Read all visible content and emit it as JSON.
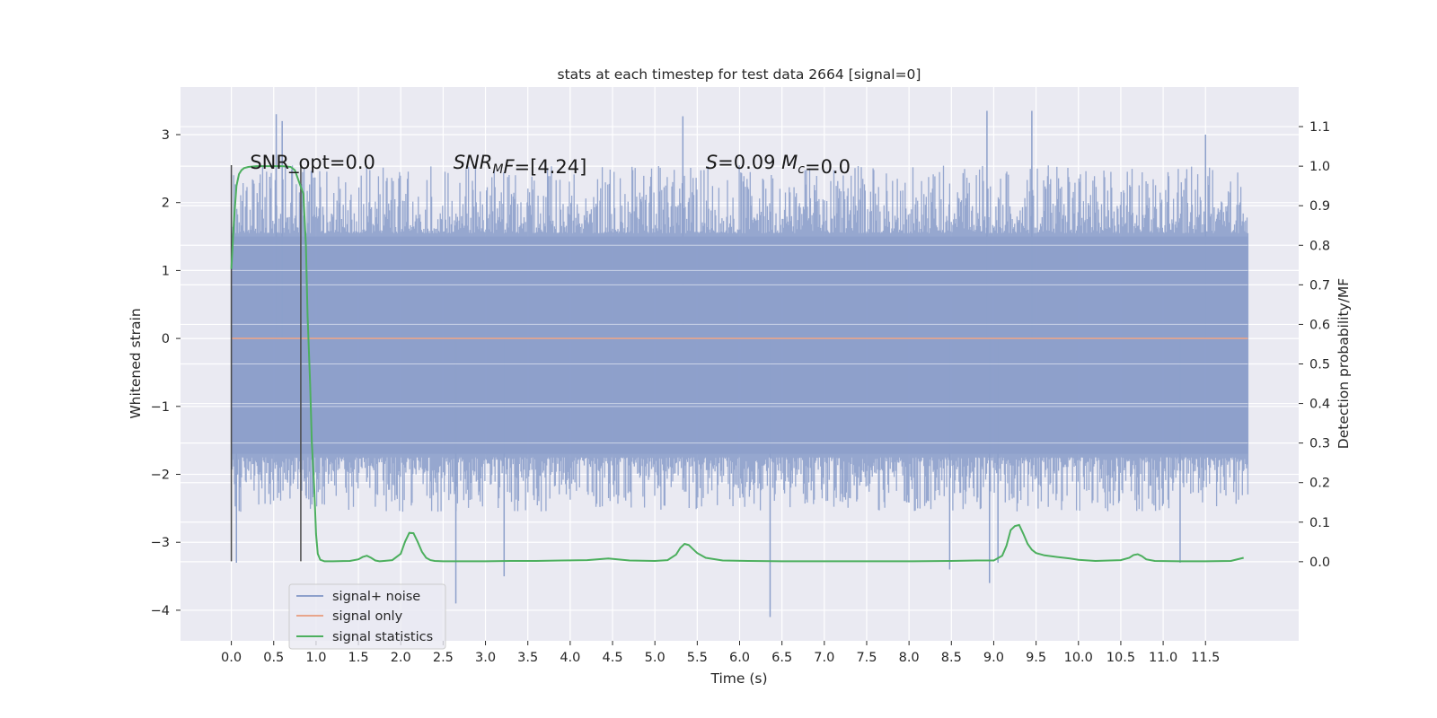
{
  "chart_data": {
    "type": "line",
    "title": "stats at each timestep for test data 2664 [signal=0]",
    "xlabel": "Time (s)",
    "ylabel": "Whitened strain",
    "y2label": "Detection probability/MF",
    "xlim": [
      -0.6,
      12.6
    ],
    "ylim": [
      -4.45,
      3.7
    ],
    "y2lim": [
      -0.2,
      1.2
    ],
    "x_ticks": [
      0.0,
      0.5,
      1.0,
      1.5,
      2.0,
      2.5,
      3.0,
      3.5,
      4.0,
      4.5,
      5.0,
      5.5,
      6.0,
      6.5,
      7.0,
      7.5,
      8.0,
      8.5,
      9.0,
      9.5,
      10.0,
      10.5,
      11.0,
      11.5
    ],
    "x_tick_labels": [
      "0.0",
      "0.5",
      "1.0",
      "1.5",
      "2.0",
      "2.5",
      "3.0",
      "3.5",
      "4.0",
      "4.5",
      "5.0",
      "5.5",
      "6.0",
      "6.5",
      "7.0",
      "7.5",
      "8.0",
      "8.5",
      "9.0",
      "9.5",
      "10.0",
      "10.5",
      "11.0",
      "11.5"
    ],
    "y_ticks": [
      3,
      2,
      1,
      0,
      -1,
      -2,
      -3,
      -4
    ],
    "y_tick_labels": [
      "3",
      "2",
      "1",
      "0",
      "−1",
      "−2",
      "−3",
      "−4"
    ],
    "y2_ticks": [
      1.1,
      1.0,
      0.9,
      0.8,
      0.7,
      0.6,
      0.5,
      0.4,
      0.3,
      0.2,
      0.1,
      0.0
    ],
    "y2_tick_labels": [
      "1.1",
      "1.0",
      "0.9",
      "0.8",
      "0.7",
      "0.6",
      "0.5",
      "0.4",
      "0.3",
      "0.2",
      "0.1",
      "0.0"
    ],
    "grid": true,
    "legend_position": "lower-left",
    "noise": {
      "x_range": [
        0.0,
        12.0
      ],
      "core_range": [
        -1.7,
        1.5
      ],
      "typical_peak_range": [
        -2.5,
        2.5
      ],
      "extreme_points": [
        {
          "x": 0.06,
          "y": -3.3
        },
        {
          "x": 0.53,
          "y": 3.3
        },
        {
          "x": 0.6,
          "y": 3.2
        },
        {
          "x": 2.65,
          "y": -3.9
        },
        {
          "x": 3.22,
          "y": -3.5
        },
        {
          "x": 5.33,
          "y": 3.27
        },
        {
          "x": 6.36,
          "y": -4.1
        },
        {
          "x": 8.48,
          "y": -3.4
        },
        {
          "x": 8.92,
          "y": 3.35
        },
        {
          "x": 8.95,
          "y": -3.6
        },
        {
          "x": 9.45,
          "y": 3.35
        },
        {
          "x": 9.05,
          "y": -3.3
        },
        {
          "x": 11.2,
          "y": -3.3
        },
        {
          "x": 11.5,
          "y": 3.0
        }
      ]
    },
    "signal_only": {
      "y": 0.0
    },
    "vertical_markers": [
      {
        "x": 0.0,
        "y_range": [
          -3.28,
          2.55
        ]
      },
      {
        "x": 0.82,
        "y_range": [
          -3.28,
          2.55
        ]
      }
    ],
    "series": [
      {
        "name": "signal+ noise",
        "color": "#8da0cb",
        "kind": "noise"
      },
      {
        "name": "signal only",
        "color": "#e8a58b",
        "kind": "flat"
      },
      {
        "name": "signal statistics",
        "color": "#4caf5e",
        "axis": "right",
        "x": [
          0.0,
          0.03,
          0.06,
          0.09,
          0.12,
          0.15,
          0.2,
          0.3,
          0.4,
          0.5,
          0.6,
          0.7,
          0.75,
          0.8,
          0.85,
          0.88,
          0.9,
          0.93,
          0.95,
          0.98,
          1.0,
          1.02,
          1.05,
          1.1,
          1.2,
          1.4,
          1.5,
          1.55,
          1.6,
          1.65,
          1.7,
          1.75,
          1.8,
          1.9,
          2.0,
          2.05,
          2.1,
          2.15,
          2.2,
          2.25,
          2.3,
          2.35,
          2.4,
          2.5,
          2.7,
          3.0,
          3.3,
          3.6,
          3.9,
          4.2,
          4.45,
          4.7,
          5.0,
          5.15,
          5.25,
          5.3,
          5.35,
          5.4,
          5.45,
          5.5,
          5.6,
          5.8,
          6.1,
          6.5,
          7.0,
          7.5,
          8.0,
          8.5,
          8.8,
          9.0,
          9.1,
          9.15,
          9.2,
          9.25,
          9.3,
          9.35,
          9.4,
          9.45,
          9.5,
          9.6,
          9.75,
          9.9,
          10.0,
          10.2,
          10.5,
          10.6,
          10.65,
          10.7,
          10.75,
          10.8,
          10.9,
          11.2,
          11.5,
          11.8,
          11.95
        ],
        "y": [
          0.74,
          0.86,
          0.95,
          0.98,
          0.99,
          0.995,
          0.998,
          1.0,
          1.0,
          1.0,
          1.0,
          0.998,
          0.99,
          0.96,
          0.93,
          0.8,
          0.62,
          0.45,
          0.3,
          0.18,
          0.07,
          0.02,
          0.005,
          0.001,
          0.001,
          0.002,
          0.006,
          0.012,
          0.015,
          0.01,
          0.003,
          0.001,
          0.002,
          0.004,
          0.02,
          0.05,
          0.073,
          0.072,
          0.05,
          0.025,
          0.01,
          0.004,
          0.002,
          0.001,
          0.001,
          0.001,
          0.002,
          0.002,
          0.003,
          0.004,
          0.008,
          0.003,
          0.002,
          0.004,
          0.018,
          0.035,
          0.045,
          0.042,
          0.032,
          0.022,
          0.01,
          0.003,
          0.002,
          0.001,
          0.001,
          0.001,
          0.001,
          0.002,
          0.003,
          0.003,
          0.015,
          0.04,
          0.08,
          0.09,
          0.093,
          0.07,
          0.045,
          0.03,
          0.022,
          0.016,
          0.012,
          0.008,
          0.005,
          0.002,
          0.004,
          0.01,
          0.017,
          0.019,
          0.014,
          0.006,
          0.002,
          0.001,
          0.001,
          0.002,
          0.01
        ]
      }
    ],
    "annotations": [
      {
        "x": 0.22,
        "y": 2.5,
        "text": "SNR_opt=0.0",
        "parts": [
          {
            "t": "SNR_opt=0.0"
          }
        ]
      },
      {
        "x": 2.62,
        "y": 2.5,
        "text": "SNR_MF=[4.24]",
        "parts": [
          {
            "t": "SNR",
            "i": true
          },
          {
            "t": "M",
            "i": true,
            "sub": true
          },
          {
            "t": "F",
            "i": true
          },
          {
            "t": "=[4.24]"
          }
        ]
      },
      {
        "x": 5.6,
        "y": 2.5,
        "text": "S=0.09   M_c=0.0",
        "parts": [
          {
            "t": "S",
            "i": true
          },
          {
            "t": "=0.09   "
          },
          {
            "t": "M",
            "i": true
          },
          {
            "t": "c",
            "i": true,
            "sub": true
          },
          {
            "t": "=0.0"
          }
        ]
      }
    ]
  }
}
